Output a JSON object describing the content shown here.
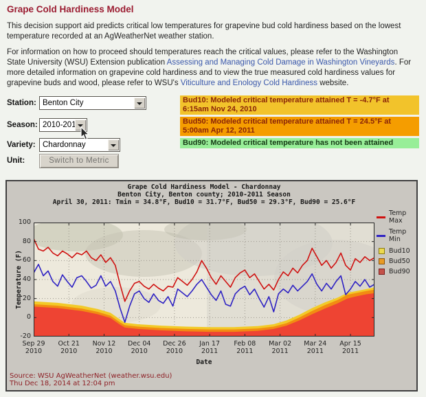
{
  "page": {
    "title": "Grape Cold Hardiness Model",
    "intro": "This decision support aid predicts critical low temperatures for grapevine bud cold hardiness based on the lowest temperature recorded at an AgWeatherNet weather station.",
    "info_pre": "For information on how to proceed should temperatures reach the critical values, please refer to the Washington State University (WSU) Extension publication ",
    "info_link1": "Assessing and Managing Cold Damage in Washington Vineyards",
    "info_mid": ". For more detailed information on grapevine cold hardiness and to view the true measured cold hardiness values for grapevine buds and wood, please refer to WSU's ",
    "info_link2": "Viticulture and Enology Cold Hardiness",
    "info_post": " website."
  },
  "form": {
    "station_label": "Station:",
    "station_value": "Benton City",
    "season_label": "Season:",
    "season_value": "2010-2011",
    "variety_label": "Variety:",
    "variety_value": "Chardonnay",
    "unit_label": "Unit:",
    "unit_button": "Switch to Metric"
  },
  "status": [
    {
      "id": "Bud10",
      "text": "Bud10: Modeled critical temperature attained T = -4.7°F at 6:15am Nov 24, 2010",
      "bg": "#f2c32b",
      "fg": "#8a2408"
    },
    {
      "id": "Bud50",
      "text": "Bud50: Modeled critical temperature attained T = 24.5°F at 5:00am Apr 12, 2011",
      "bg": "#f59d00",
      "fg": "#8a2408"
    },
    {
      "id": "Bud90",
      "text": "Bud90: Modeled critical temperature has not been attained",
      "bg": "#98ee98",
      "fg": "#153a15"
    }
  ],
  "chart": {
    "title1": "Grape Cold Hardiness Model - Chardonnay",
    "title2": "Benton City, Benton county; 2010-2011 Season",
    "title3": "April 30, 2011: Tmin = 34.8°F, Bud10 = 31.7°F, Bud50 = 29.3°F, Bud90 = 25.6°F",
    "ylabel": "Temperature (F)",
    "xlabel": "Date",
    "source_line1": "Source: WSU AgWeatherNet (weather.wsu.edu)",
    "source_line2": "Thu Dec 18, 2014 at 12:04 pm",
    "legend": [
      {
        "label": "Temp Max",
        "swatch": "line",
        "color": "#cf1110"
      },
      {
        "label": "Temp Min",
        "swatch": "line",
        "color": "#2d21c3"
      },
      {
        "label": "Bud10",
        "swatch": "square",
        "color": "#ecd94f",
        "border": "#8a7a10"
      },
      {
        "label": "Bud50",
        "swatch": "square",
        "color": "#e89b25",
        "border": "#8a5510"
      },
      {
        "label": "Bud90",
        "swatch": "square",
        "color": "#c4524a",
        "border": "#7a2020"
      }
    ]
  },
  "chart_data": {
    "type": "line",
    "title": "Grape Cold Hardiness Model - Chardonnay",
    "x_axis_start": "Sep 29, 2010",
    "x_axis_end": "Apr 30, 2011",
    "x_range_days": 213,
    "x_start_day": 0,
    "x_step_days": 3,
    "ylim": [
      -20,
      100
    ],
    "y_ticks": [
      100,
      80,
      60,
      40,
      20,
      0,
      -20
    ],
    "x_ticks": [
      {
        "l1": "Sep 29",
        "l2": "2010",
        "day": 0
      },
      {
        "l1": "Oct 21",
        "l2": "2010",
        "day": 22
      },
      {
        "l1": "Nov 12",
        "l2": "2010",
        "day": 44
      },
      {
        "l1": "Dec 04",
        "l2": "2010",
        "day": 66
      },
      {
        "l1": "Dec 26",
        "l2": "2010",
        "day": 88
      },
      {
        "l1": "Jan 17",
        "l2": "2011",
        "day": 110
      },
      {
        "l1": "Feb 08",
        "l2": "2011",
        "day": 132
      },
      {
        "l1": "Mar 02",
        "l2": "2011",
        "day": 154
      },
      {
        "l1": "Mar 24",
        "l2": "2011",
        "day": 176
      },
      {
        "l1": "Apr 15",
        "l2": "2011",
        "day": 198
      }
    ],
    "series": [
      {
        "name": "Temp Max",
        "color": "#cf1110",
        "values": [
          83,
          72,
          70,
          74,
          68,
          65,
          70,
          67,
          63,
          68,
          66,
          70,
          63,
          60,
          66,
          58,
          63,
          55,
          35,
          17,
          28,
          36,
          38,
          33,
          30,
          35,
          31,
          28,
          33,
          32,
          42,
          38,
          34,
          40,
          48,
          60,
          52,
          42,
          35,
          44,
          38,
          32,
          42,
          47,
          50,
          42,
          46,
          38,
          30,
          35,
          29,
          40,
          48,
          44,
          52,
          47,
          55,
          60,
          73,
          64,
          55,
          60,
          52,
          58,
          68,
          55,
          50,
          62,
          58,
          64,
          60,
          63
        ]
      },
      {
        "name": "Temp Min",
        "color": "#2d21c3",
        "values": [
          47,
          56,
          44,
          49,
          38,
          33,
          45,
          38,
          32,
          42,
          44,
          38,
          31,
          34,
          44,
          33,
          38,
          28,
          10,
          -5,
          12,
          25,
          28,
          20,
          16,
          25,
          18,
          15,
          22,
          12,
          30,
          26,
          22,
          28,
          35,
          40,
          32,
          24,
          18,
          28,
          14,
          12,
          25,
          30,
          33,
          24,
          30,
          20,
          11,
          22,
          6,
          25,
          30,
          26,
          34,
          28,
          33,
          38,
          46,
          35,
          28,
          36,
          30,
          38,
          44,
          24,
          30,
          38,
          33,
          40,
          32,
          35
        ]
      }
    ],
    "bands": [
      {
        "name": "Bud10",
        "color": "#f2ca28",
        "points": [
          [
            0,
            17
          ],
          [
            15,
            15.5
          ],
          [
            30,
            12.5
          ],
          [
            40,
            9
          ],
          [
            48,
            5
          ],
          [
            54,
            -2
          ],
          [
            57,
            -5.5
          ],
          [
            65,
            -7
          ],
          [
            80,
            -8.5
          ],
          [
            95,
            -9.5
          ],
          [
            110,
            -10
          ],
          [
            125,
            -10
          ],
          [
            140,
            -9
          ],
          [
            150,
            -7
          ],
          [
            158,
            -3
          ],
          [
            166,
            3
          ],
          [
            174,
            10
          ],
          [
            182,
            16
          ],
          [
            190,
            21
          ],
          [
            196,
            26
          ],
          [
            202,
            28
          ],
          [
            208,
            30
          ],
          [
            213,
            31.7
          ]
        ]
      },
      {
        "name": "Bud50",
        "color": "#f28c12",
        "points": [
          [
            0,
            14
          ],
          [
            15,
            12.5
          ],
          [
            30,
            9.5
          ],
          [
            40,
            6
          ],
          [
            48,
            2
          ],
          [
            54,
            -5
          ],
          [
            57,
            -8
          ],
          [
            65,
            -9.5
          ],
          [
            80,
            -11
          ],
          [
            95,
            -12
          ],
          [
            110,
            -12.5
          ],
          [
            125,
            -12.5
          ],
          [
            140,
            -11.5
          ],
          [
            150,
            -9.5
          ],
          [
            158,
            -6
          ],
          [
            166,
            0
          ],
          [
            174,
            7
          ],
          [
            182,
            13
          ],
          [
            190,
            18.5
          ],
          [
            196,
            24
          ],
          [
            202,
            26
          ],
          [
            208,
            28
          ],
          [
            213,
            29.3
          ]
        ]
      },
      {
        "name": "Bud90",
        "color": "#ee4433",
        "points": [
          [
            0,
            11.5
          ],
          [
            15,
            10
          ],
          [
            30,
            7
          ],
          [
            40,
            3.5
          ],
          [
            48,
            -0.5
          ],
          [
            54,
            -7.5
          ],
          [
            57,
            -10.5
          ],
          [
            65,
            -12
          ],
          [
            80,
            -13.5
          ],
          [
            95,
            -14.5
          ],
          [
            110,
            -15
          ],
          [
            125,
            -15
          ],
          [
            140,
            -14
          ],
          [
            150,
            -12
          ],
          [
            158,
            -8.5
          ],
          [
            166,
            -3
          ],
          [
            174,
            3.5
          ],
          [
            182,
            9.5
          ],
          [
            190,
            15
          ],
          [
            196,
            20
          ],
          [
            202,
            22.5
          ],
          [
            208,
            24.5
          ],
          [
            213,
            25.6
          ]
        ]
      }
    ],
    "annotations": [
      "Bud10 critical reached: -4.7°F at 6:15am Nov 24, 2010",
      "Bud50 critical reached: 24.5°F at 5:00am Apr 12, 2011",
      "Final Apr 30, 2011: Tmin 34.8°F, Bud10 31.7°F, Bud50 29.3°F, Bud90 25.6°F"
    ],
    "legend_position": "right"
  }
}
